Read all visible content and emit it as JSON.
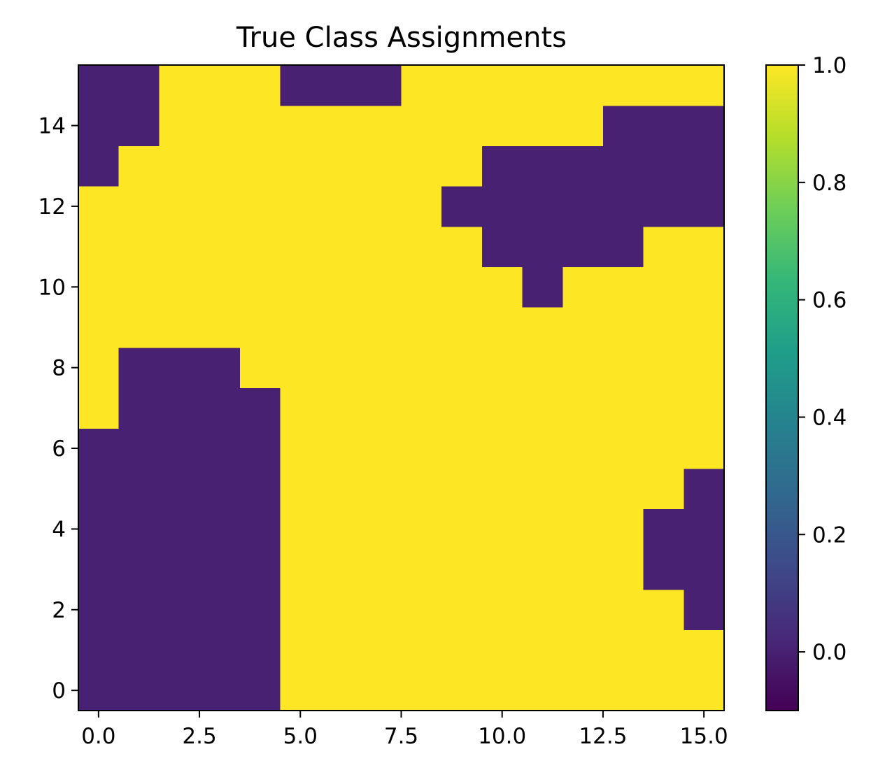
{
  "chart_data": {
    "type": "heatmap",
    "title": "True Class Assignments",
    "xlabel": "",
    "ylabel": "",
    "grid": false,
    "origin": "lower",
    "xlim": [
      -0.5,
      15.5
    ],
    "ylim": [
      -0.5,
      15.5
    ],
    "x_ticks": [
      0.0,
      2.5,
      5.0,
      7.5,
      10.0,
      12.5,
      15.0
    ],
    "x_tick_labels": [
      "0.0",
      "2.5",
      "5.0",
      "7.5",
      "10.0",
      "12.5",
      "15.0"
    ],
    "y_ticks": [
      0,
      2,
      4,
      6,
      8,
      10,
      12,
      14
    ],
    "y_tick_labels": [
      "0",
      "2",
      "4",
      "6",
      "8",
      "10",
      "12",
      "14"
    ],
    "colormap": "viridis",
    "colors": {
      "class_0": "#482173",
      "class_1": "#fde725"
    },
    "colorbar": {
      "range": [
        -0.1,
        1.0
      ],
      "ticks": [
        0.0,
        0.2,
        0.4,
        0.6,
        0.8,
        1.0
      ],
      "tick_labels": [
        "0.0",
        "0.2",
        "0.4",
        "0.6",
        "0.8",
        "1.0"
      ],
      "stops": [
        "#440154",
        "#482878",
        "#3e4989",
        "#31688e",
        "#26828e",
        "#1f9e89",
        "#35b779",
        "#6ece58",
        "#b5de2b",
        "#fde725"
      ]
    },
    "values": [
      [
        0,
        0,
        0,
        0,
        0,
        1,
        1,
        1,
        1,
        1,
        1,
        1,
        1,
        1,
        1,
        1
      ],
      [
        0,
        0,
        0,
        0,
        0,
        1,
        1,
        1,
        1,
        1,
        1,
        1,
        1,
        1,
        1,
        1
      ],
      [
        0,
        0,
        0,
        0,
        0,
        1,
        1,
        1,
        1,
        1,
        1,
        1,
        1,
        1,
        1,
        0
      ],
      [
        0,
        0,
        0,
        0,
        0,
        1,
        1,
        1,
        1,
        1,
        1,
        1,
        1,
        1,
        0,
        0
      ],
      [
        0,
        0,
        0,
        0,
        0,
        1,
        1,
        1,
        1,
        1,
        1,
        1,
        1,
        1,
        0,
        0
      ],
      [
        0,
        0,
        0,
        0,
        0,
        1,
        1,
        1,
        1,
        1,
        1,
        1,
        1,
        1,
        1,
        0
      ],
      [
        0,
        0,
        0,
        0,
        0,
        1,
        1,
        1,
        1,
        1,
        1,
        1,
        1,
        1,
        1,
        1
      ],
      [
        1,
        0,
        0,
        0,
        0,
        1,
        1,
        1,
        1,
        1,
        1,
        1,
        1,
        1,
        1,
        1
      ],
      [
        1,
        0,
        0,
        0,
        1,
        1,
        1,
        1,
        1,
        1,
        1,
        1,
        1,
        1,
        1,
        1
      ],
      [
        1,
        1,
        1,
        1,
        1,
        1,
        1,
        1,
        1,
        1,
        1,
        1,
        1,
        1,
        1,
        1
      ],
      [
        1,
        1,
        1,
        1,
        1,
        1,
        1,
        1,
        1,
        1,
        1,
        0,
        1,
        1,
        1,
        1
      ],
      [
        1,
        1,
        1,
        1,
        1,
        1,
        1,
        1,
        1,
        1,
        0,
        0,
        0,
        0,
        1,
        1
      ],
      [
        1,
        1,
        1,
        1,
        1,
        1,
        1,
        1,
        1,
        0,
        0,
        0,
        0,
        0,
        0,
        0
      ],
      [
        0,
        1,
        1,
        1,
        1,
        1,
        1,
        1,
        1,
        1,
        0,
        0,
        0,
        0,
        0,
        0
      ],
      [
        0,
        0,
        1,
        1,
        1,
        1,
        1,
        1,
        1,
        1,
        1,
        1,
        1,
        0,
        0,
        0
      ],
      [
        0,
        0,
        1,
        1,
        1,
        0,
        0,
        0,
        1,
        1,
        1,
        1,
        1,
        1,
        1,
        1
      ]
    ]
  }
}
